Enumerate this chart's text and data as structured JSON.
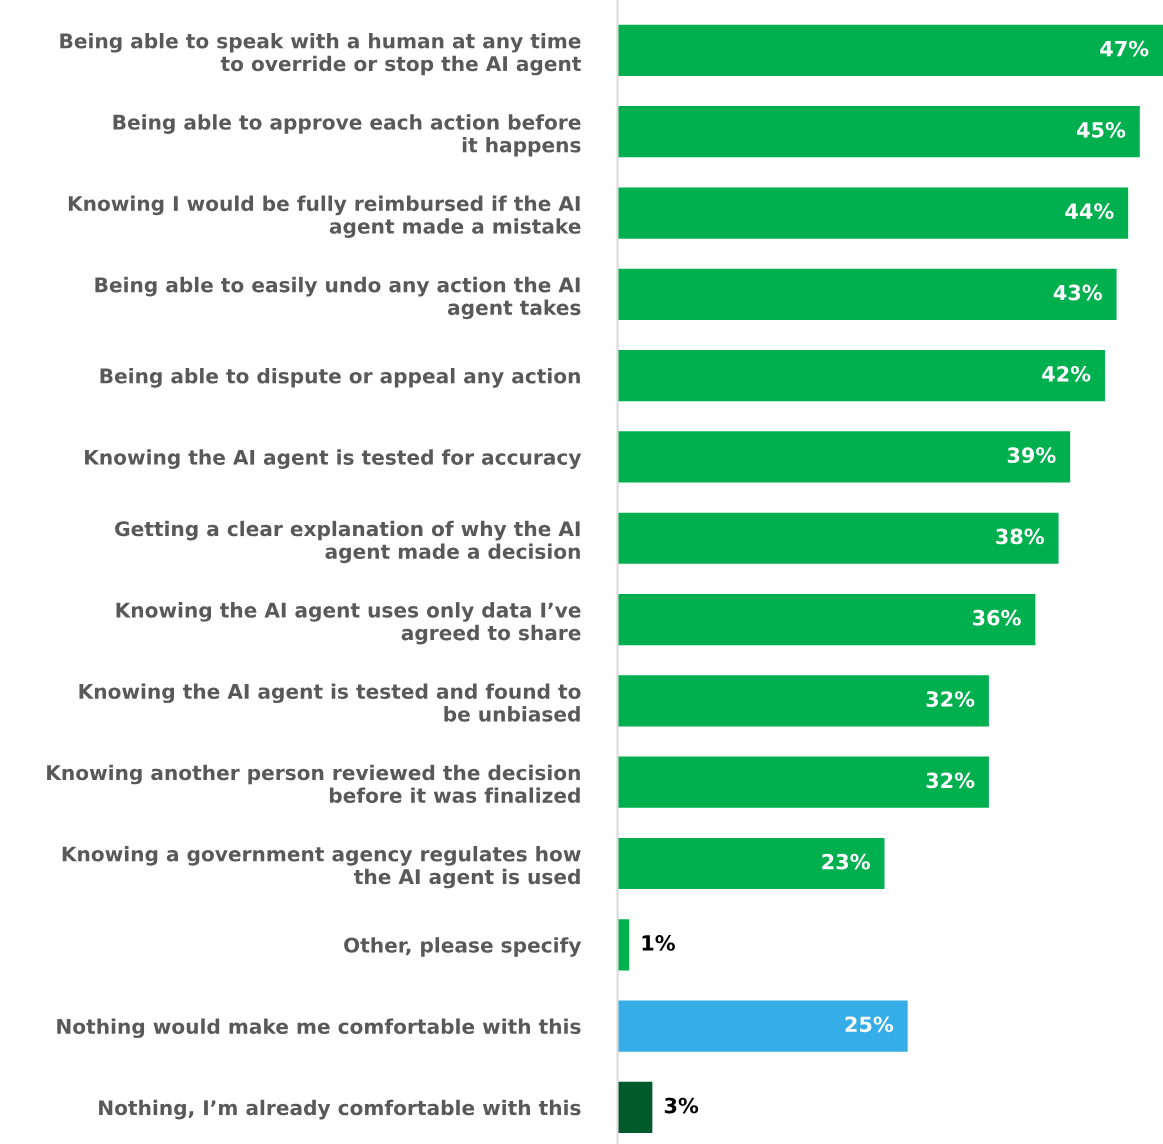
{
  "chart_data": {
    "type": "bar",
    "orientation": "horizontal",
    "categories": [
      "Being able to speak with a human at any time\nto override or stop the AI agent",
      "Being able to approve each action before\nit happens",
      "Knowing I would be fully reimbursed if the AI\nagent made a mistake",
      "Being able to easily undo any action the AI\nagent takes",
      "Being able to dispute or appeal any action",
      "Knowing the AI agent is tested for accuracy",
      "Getting a clear explanation of why the AI\nagent made a decision",
      "Knowing the AI agent uses only data I’ve\nagreed to share",
      "Knowing the AI agent is tested and found to\nbe unbiased",
      "Knowing another person reviewed the decision\nbefore it was finalized",
      "Knowing a government agency regulates how\nthe AI agent is used",
      "Other, please specify",
      "Nothing would make me comfortable with this",
      "Nothing, I’m already comfortable with this"
    ],
    "values": [
      47,
      45,
      44,
      43,
      42,
      39,
      38,
      36,
      32,
      32,
      23,
      1,
      25,
      3
    ],
    "value_labels": [
      "47%",
      "45%",
      "44%",
      "43%",
      "42%",
      "39%",
      "38%",
      "36%",
      "32%",
      "32%",
      "23%",
      "1%",
      "25%",
      "3%"
    ],
    "colors": [
      "#00b04f",
      "#00b04f",
      "#00b04f",
      "#00b04f",
      "#00b04f",
      "#00b04f",
      "#00b04f",
      "#00b04f",
      "#00b04f",
      "#00b04f",
      "#00b04f",
      "#00b04f",
      "#35ade6",
      "#005a2b"
    ]
  }
}
